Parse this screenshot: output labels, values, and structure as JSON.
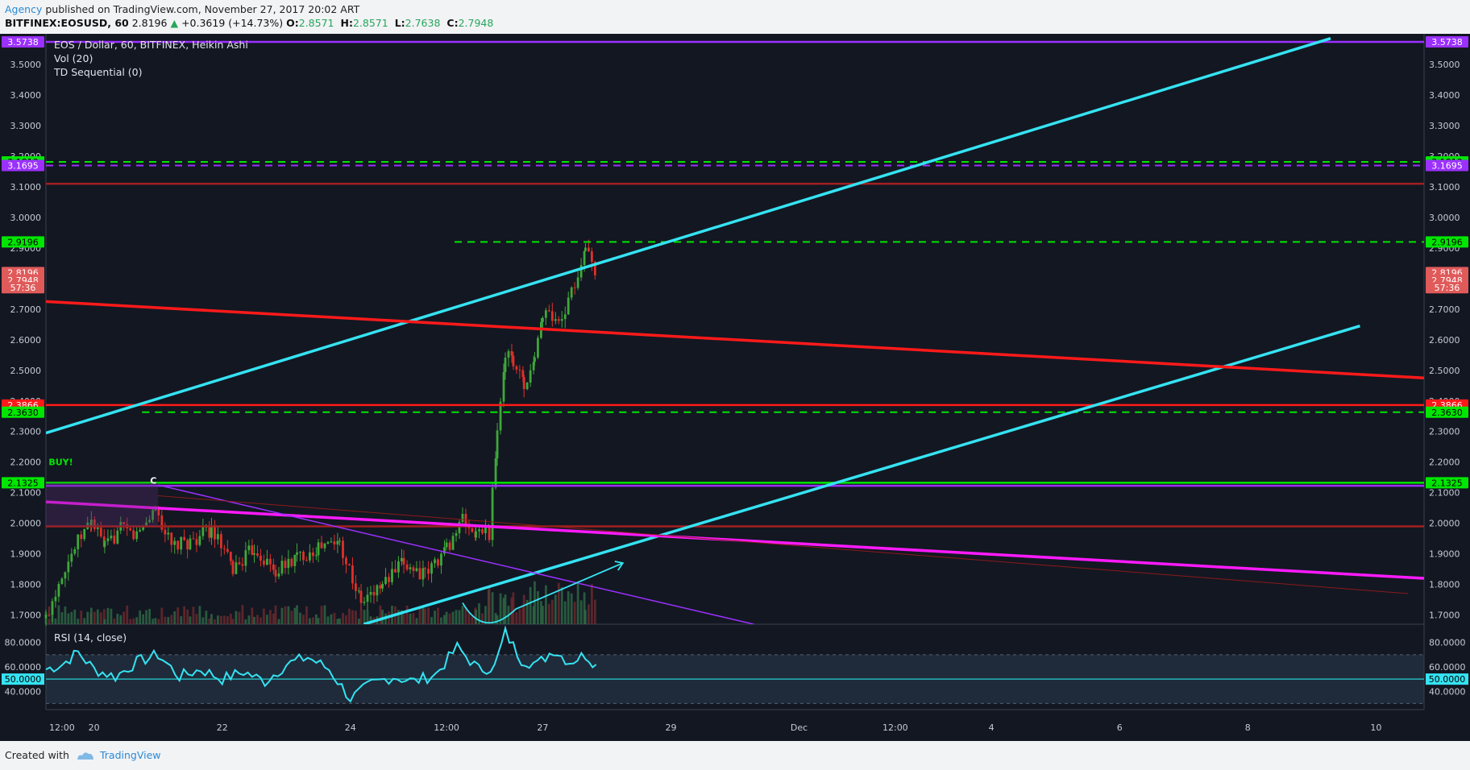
{
  "header": {
    "author": "Agency",
    "published": "published on TradingView.com, November 27, 2017 20:02 ART"
  },
  "symbol_line": {
    "symbol": "BITFINEX:EOSUSD, 60",
    "last": "2.8196",
    "change": "+0.3619 (+14.73%)",
    "o_label": "O:",
    "o": "2.8571",
    "h_label": "H:",
    "h": "2.8571",
    "l_label": "L:",
    "l": "2.7638",
    "c_label": "C:",
    "c": "2.7948"
  },
  "footer": {
    "created_with": "Created with",
    "brand": "TradingView"
  },
  "colors": {
    "background": "#131722",
    "cyan": "#35e3f2",
    "red": "#ff1a1a",
    "magenta": "#ff1aff",
    "green": "#00e600",
    "purple": "#9b30ff",
    "dark_red": "#a32020"
  },
  "chart_data": {
    "type": "candlestick",
    "title": "EOS / Dollar, 60, BITFINEX, Heikin Ashi",
    "indicators": [
      "Vol (20)",
      "TD Sequential (0)"
    ],
    "price_axis": {
      "min": 1.67,
      "max": 3.6,
      "ticks": [
        "1.7000",
        "1.8000",
        "1.9000",
        "2.0000",
        "2.1000",
        "2.2000",
        "2.3000",
        "2.4000",
        "2.5000",
        "2.6000",
        "2.7000",
        "2.8000",
        "2.9000",
        "3.0000",
        "3.1000",
        "3.2000",
        "3.3000",
        "3.4000",
        "3.5000"
      ]
    },
    "time_axis": {
      "start": "2017-11-19T06:00",
      "end": "2017-12-10T18:00",
      "ticks": [
        {
          "t": "2017-11-19T12:00",
          "label": "12:00"
        },
        {
          "t": "2017-11-20T00:00",
          "label": "20"
        },
        {
          "t": "2017-11-22T00:00",
          "label": "22"
        },
        {
          "t": "2017-11-24T00:00",
          "label": "24"
        },
        {
          "t": "2017-11-25T12:00",
          "label": "12:00"
        },
        {
          "t": "2017-11-27T00:00",
          "label": "27"
        },
        {
          "t": "2017-11-29T00:00",
          "label": "29"
        },
        {
          "t": "2017-12-01T00:00",
          "label": "Dec"
        },
        {
          "t": "2017-12-02T12:00",
          "label": "12:00"
        },
        {
          "t": "2017-12-04T00:00",
          "label": "4"
        },
        {
          "t": "2017-12-06T00:00",
          "label": "6"
        },
        {
          "t": "2017-12-08T00:00",
          "label": "8"
        },
        {
          "t": "2017-12-10T00:00",
          "label": "10"
        }
      ]
    },
    "price_path": [
      [
        "2017-11-19T06:00",
        1.69
      ],
      [
        "2017-11-19T12:00",
        1.84
      ],
      [
        "2017-11-19T18:00",
        1.94
      ],
      [
        "2017-11-19T23:00",
        2.01
      ],
      [
        "2017-11-20T04:00",
        1.92
      ],
      [
        "2017-11-20T10:00",
        1.98
      ],
      [
        "2017-11-20T16:00",
        1.96
      ],
      [
        "2017-11-20T23:00",
        2.05
      ],
      [
        "2017-11-21T05:00",
        1.92
      ],
      [
        "2017-11-21T12:00",
        1.94
      ],
      [
        "2017-11-21T20:00",
        1.98
      ],
      [
        "2017-11-22T04:00",
        1.85
      ],
      [
        "2017-11-22T12:00",
        1.92
      ],
      [
        "2017-11-22T20:00",
        1.84
      ],
      [
        "2017-11-23T04:00",
        1.89
      ],
      [
        "2017-11-23T12:00",
        1.92
      ],
      [
        "2017-11-23T20:00",
        1.94
      ],
      [
        "2017-11-24T04:00",
        1.74
      ],
      [
        "2017-11-24T12:00",
        1.8
      ],
      [
        "2017-11-24T20:00",
        1.87
      ],
      [
        "2017-11-25T04:00",
        1.83
      ],
      [
        "2017-11-25T12:00",
        1.92
      ],
      [
        "2017-11-25T18:00",
        2.01
      ],
      [
        "2017-11-25T23:00",
        1.96
      ],
      [
        "2017-11-26T04:00",
        1.97
      ],
      [
        "2017-11-26T07:00",
        2.3
      ],
      [
        "2017-11-26T10:00",
        2.55
      ],
      [
        "2017-11-26T13:00",
        2.52
      ],
      [
        "2017-11-26T17:00",
        2.46
      ],
      [
        "2017-11-26T21:00",
        2.52
      ],
      [
        "2017-11-27T00:00",
        2.68
      ],
      [
        "2017-11-27T06:00",
        2.66
      ],
      [
        "2017-11-27T12:00",
        2.78
      ],
      [
        "2017-11-27T16:00",
        2.9
      ],
      [
        "2017-11-27T20:00",
        2.8
      ]
    ],
    "rsi_path": [
      [
        "2017-11-19T06:00",
        58
      ],
      [
        "2017-11-19T12:00",
        62
      ],
      [
        "2017-11-19T18:00",
        72
      ],
      [
        "2017-11-20T00:00",
        58
      ],
      [
        "2017-11-20T08:00",
        52
      ],
      [
        "2017-11-20T16:00",
        64
      ],
      [
        "2017-11-21T00:00",
        70
      ],
      [
        "2017-11-21T08:00",
        52
      ],
      [
        "2017-11-21T16:00",
        58
      ],
      [
        "2017-11-22T00:00",
        50
      ],
      [
        "2017-11-22T08:00",
        56
      ],
      [
        "2017-11-22T16:00",
        48
      ],
      [
        "2017-11-23T00:00",
        62
      ],
      [
        "2017-11-23T08:00",
        68
      ],
      [
        "2017-11-23T16:00",
        58
      ],
      [
        "2017-11-24T00:00",
        34
      ],
      [
        "2017-11-24T08:00",
        46
      ],
      [
        "2017-11-24T16:00",
        52
      ],
      [
        "2017-11-25T00:00",
        48
      ],
      [
        "2017-11-25T08:00",
        54
      ],
      [
        "2017-11-25T16:00",
        76
      ],
      [
        "2017-11-26T00:00",
        58
      ],
      [
        "2017-11-26T06:00",
        60
      ],
      [
        "2017-11-26T10:00",
        88
      ],
      [
        "2017-11-26T16:00",
        66
      ],
      [
        "2017-11-26T22:00",
        62
      ],
      [
        "2017-11-27T04:00",
        74
      ],
      [
        "2017-11-27T10:00",
        64
      ],
      [
        "2017-11-27T16:00",
        70
      ],
      [
        "2017-11-27T20:00",
        62
      ]
    ],
    "horizontal_levels": [
      {
        "price": 3.5738,
        "label": "3.5738",
        "kind": "solid",
        "color": "#9b30ff",
        "tag_bg": "#9b30ff",
        "tag_fg": "#ffffff"
      },
      {
        "price": 3.1813,
        "label": "3.1813",
        "kind": "dashed",
        "color": "#00e600",
        "tag_bg": "#00e600",
        "tag_fg": "#000000"
      },
      {
        "price": 3.1695,
        "label": "3.1695",
        "kind": "dashed",
        "color": "#9b30ff",
        "tag_bg": "#9b30ff",
        "tag_fg": "#ffffff"
      },
      {
        "price": 3.11,
        "label": "",
        "kind": "solid",
        "color": "#a32020"
      },
      {
        "price": 2.9196,
        "label": "2.9196",
        "kind": "dashed",
        "color": "#00e600",
        "tag_bg": "#00e600",
        "tag_fg": "#000000",
        "from": "2017-11-25T15:00"
      },
      {
        "price": 2.3866,
        "label": "2.3866",
        "kind": "solid",
        "color": "#ff1a1a",
        "tag_bg": "#ff1a1a",
        "tag_fg": "#ffffff"
      },
      {
        "price": 2.363,
        "label": "2.3630",
        "kind": "dashed",
        "color": "#00e600",
        "tag_bg": "#00e600",
        "tag_fg": "#000000",
        "from": "2017-11-20T18:00"
      },
      {
        "price": 2.1325,
        "label": "2.1325",
        "kind": "solid",
        "color": "#00e600",
        "tag_bg": "#00e600",
        "tag_fg": "#000000"
      },
      {
        "price": 2.1225,
        "label": "",
        "kind": "solid",
        "color": "#9b30ff"
      },
      {
        "price": 1.99,
        "label": "",
        "kind": "solid",
        "color": "#a32020"
      }
    ],
    "price_tags": [
      {
        "price": 2.8196,
        "label": "2.8196"
      },
      {
        "price": 2.7948,
        "label": "2.7948"
      },
      {
        "price": 2.77,
        "label": "57:36"
      }
    ],
    "trend_lines": [
      {
        "color": "#35e3f2",
        "width": 3.5,
        "from": [
          "2017-11-19T06:00",
          2.295
        ],
        "to": [
          "2017-12-09T07:00",
          3.585
        ]
      },
      {
        "color": "#35e3f2",
        "width": 3.5,
        "from": [
          "2017-11-24T05:00",
          1.67
        ],
        "to": [
          "2017-12-09T18:00",
          2.645
        ]
      },
      {
        "color": "#ff1a1a",
        "width": 3.5,
        "from": [
          "2017-11-19T06:00",
          2.725
        ],
        "to": [
          "2017-12-10T18:00",
          2.475
        ]
      },
      {
        "color": "#ff1aff",
        "width": 3.5,
        "from": [
          "2017-11-19T06:00",
          2.07
        ],
        "to": [
          "2017-12-10T18:00",
          1.82
        ]
      },
      {
        "color": "#9b30ff",
        "width": 1.5,
        "from": [
          "2017-11-21T00:00",
          2.125
        ],
        "to": [
          "2017-11-30T07:00",
          1.67
        ]
      },
      {
        "color": "#8b1a1a",
        "width": 1,
        "from": [
          "2017-11-21T00:00",
          2.09
        ],
        "to": [
          "2017-12-10T12:00",
          1.77
        ]
      }
    ],
    "annotations": [
      {
        "text": "BUY!",
        "t": "2017-11-19T07:00",
        "price": 2.19,
        "color": "#00e600"
      },
      {
        "text": "C",
        "t": "2017-11-20T21:00",
        "price": 2.13,
        "color": "#ffffff"
      }
    ],
    "rsi": {
      "label": "RSI (14, close)",
      "axis_min": 25,
      "axis_max": 95,
      "ticks": [
        "40.0000",
        "60.0000",
        "80.0000"
      ],
      "level": {
        "value": 50,
        "label": "50.0000"
      },
      "band": [
        30,
        70
      ]
    }
  }
}
